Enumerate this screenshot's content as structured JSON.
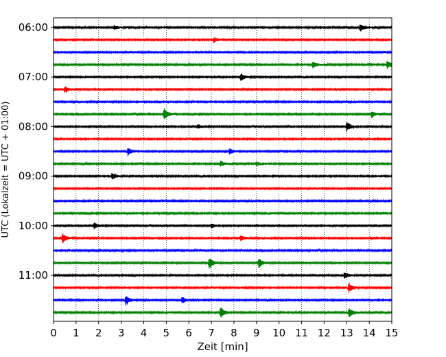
{
  "chart_data": {
    "type": "line",
    "title": "",
    "xlabel": "Zeit  [min]",
    "ylabel": "UTC (Lokalzeit = UTC + 01:00)",
    "xlim": [
      0,
      15
    ],
    "x_ticks": [
      0,
      1,
      2,
      3,
      4,
      5,
      6,
      7,
      8,
      9,
      10,
      11,
      12,
      13,
      14,
      15
    ],
    "y_tick_labels": [
      "06:00",
      "07:00",
      "08:00",
      "09:00",
      "10:00",
      "11:00"
    ],
    "grid": "vertical dotted at each minute",
    "trace_minutes": 15,
    "trace_colors": [
      "#000000",
      "#ff0000",
      "#0000ff",
      "#008000"
    ],
    "traces_start": "06:00",
    "traces_end": "11:45",
    "trace_count": 24,
    "events": [
      {
        "trace": 0,
        "minute": 13.6,
        "amp": 0.35
      },
      {
        "trace": 0,
        "minute": 2.7,
        "amp": 0.2
      },
      {
        "trace": 1,
        "minute": 7.1,
        "amp": 0.25
      },
      {
        "trace": 3,
        "minute": 11.5,
        "amp": 0.3
      },
      {
        "trace": 3,
        "minute": 14.8,
        "amp": 0.4
      },
      {
        "trace": 4,
        "minute": 8.3,
        "amp": 0.35
      },
      {
        "trace": 5,
        "minute": 0.5,
        "amp": 0.3
      },
      {
        "trace": 7,
        "minute": 4.9,
        "amp": 0.55
      },
      {
        "trace": 7,
        "minute": 14.1,
        "amp": 0.3
      },
      {
        "trace": 8,
        "minute": 13.0,
        "amp": 0.5
      },
      {
        "trace": 8,
        "minute": 6.4,
        "amp": 0.2
      },
      {
        "trace": 10,
        "minute": 3.3,
        "amp": 0.4
      },
      {
        "trace": 10,
        "minute": 7.8,
        "amp": 0.25
      },
      {
        "trace": 11,
        "minute": 7.4,
        "amp": 0.25
      },
      {
        "trace": 11,
        "minute": 9.0,
        "amp": 0.2
      },
      {
        "trace": 12,
        "minute": 2.6,
        "amp": 0.3
      },
      {
        "trace": 16,
        "minute": 1.8,
        "amp": 0.3
      },
      {
        "trace": 16,
        "minute": 7.0,
        "amp": 0.2
      },
      {
        "trace": 17,
        "minute": 0.4,
        "amp": 0.45
      },
      {
        "trace": 17,
        "minute": 8.3,
        "amp": 0.25
      },
      {
        "trace": 19,
        "minute": 6.9,
        "amp": 0.55
      },
      {
        "trace": 19,
        "minute": 9.1,
        "amp": 0.45
      },
      {
        "trace": 20,
        "minute": 12.9,
        "amp": 0.3
      },
      {
        "trace": 21,
        "minute": 13.1,
        "amp": 0.45
      },
      {
        "trace": 22,
        "minute": 3.2,
        "amp": 0.45
      },
      {
        "trace": 22,
        "minute": 5.7,
        "amp": 0.3
      },
      {
        "trace": 23,
        "minute": 7.4,
        "amp": 0.55
      },
      {
        "trace": 23,
        "minute": 13.1,
        "amp": 0.45
      }
    ]
  }
}
